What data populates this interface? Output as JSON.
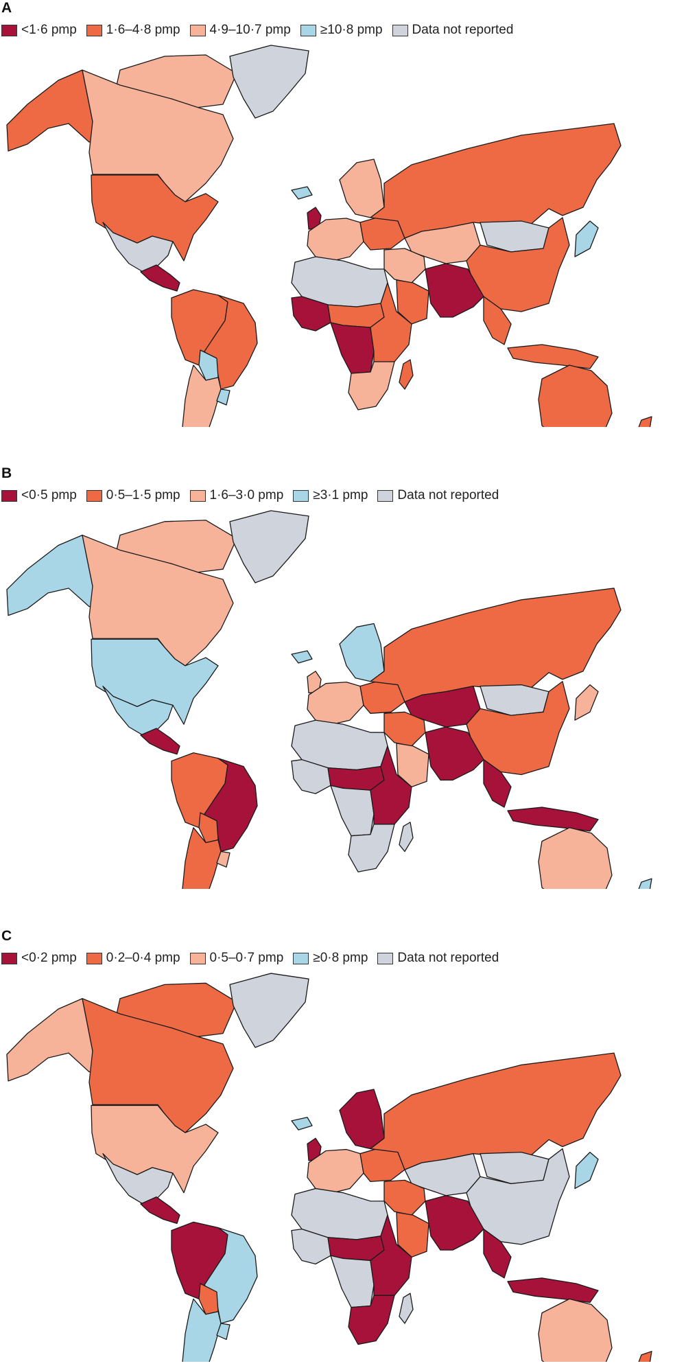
{
  "colors": {
    "dark_red": "#a6123a",
    "orange": "#ee6a45",
    "peach": "#f7b39a",
    "light_blue": "#a8d6e6",
    "grey": "#cfd3dc"
  },
  "panels": [
    {
      "letter": "A",
      "legend": [
        {
          "label": "<1·6 pmp",
          "color": "#a6123a"
        },
        {
          "label": "1·6–4·8 pmp",
          "color": "#ee6a45"
        },
        {
          "label": "4·9–10·7 pmp",
          "color": "#f7b39a"
        },
        {
          "label": "≥10·8 pmp",
          "color": "#a8d6e6"
        },
        {
          "label": "Data not reported",
          "color": "#cfd3dc"
        }
      ],
      "regions": {
        "alaska": "#ee6a45",
        "canada": "#f7b39a",
        "arctic_islands": "#f7b39a",
        "greenland": "#cfd3dc",
        "usa": "#ee6a45",
        "mexico": "#cfd3dc",
        "central_america": "#a6123a",
        "south_america_north": "#ee6a45",
        "brazil": "#ee6a45",
        "bolivia": "#a8d6e6",
        "argentina_chile": "#f7b39a",
        "uruguay": "#a8d6e6",
        "iceland": "#a8d6e6",
        "uk": "#a6123a",
        "scandinavia": "#f7b39a",
        "west_europe": "#f7b39a",
        "east_europe": "#ee6a45",
        "russia": "#ee6a45",
        "central_asia": "#f7b39a",
        "mongolia": "#cfd3dc",
        "china": "#ee6a45",
        "japan": "#a8d6e6",
        "middle_east": "#f7b39a",
        "arabia": "#ee6a45",
        "south_asia": "#a6123a",
        "southeast_asia": "#ee6a45",
        "indonesia": "#ee6a45",
        "australia": "#ee6a45",
        "new_zealand": "#ee6a45",
        "north_africa": "#cfd3dc",
        "west_africa": "#a6123a",
        "sahel": "#ee6a45",
        "central_africa": "#a6123a",
        "east_africa": "#ee6a45",
        "southern_africa": "#f7b39a",
        "madagascar": "#ee6a45"
      }
    },
    {
      "letter": "B",
      "legend": [
        {
          "label": "<0·5 pmp",
          "color": "#a6123a"
        },
        {
          "label": "0·5–1·5 pmp",
          "color": "#ee6a45"
        },
        {
          "label": "1·6–3·0 pmp",
          "color": "#f7b39a"
        },
        {
          "label": "≥3·1 pmp",
          "color": "#a8d6e6"
        },
        {
          "label": "Data not reported",
          "color": "#cfd3dc"
        }
      ],
      "regions": {
        "alaska": "#a8d6e6",
        "canada": "#f7b39a",
        "arctic_islands": "#f7b39a",
        "greenland": "#cfd3dc",
        "usa": "#a8d6e6",
        "mexico": "#a8d6e6",
        "central_america": "#a6123a",
        "south_america_north": "#ee6a45",
        "brazil": "#a6123a",
        "bolivia": "#ee6a45",
        "argentina_chile": "#ee6a45",
        "uruguay": "#f7b39a",
        "iceland": "#a8d6e6",
        "uk": "#f7b39a",
        "scandinavia": "#a8d6e6",
        "west_europe": "#f7b39a",
        "east_europe": "#ee6a45",
        "russia": "#ee6a45",
        "central_asia": "#a6123a",
        "mongolia": "#cfd3dc",
        "china": "#ee6a45",
        "japan": "#f7b39a",
        "middle_east": "#ee6a45",
        "arabia": "#f7b39a",
        "south_asia": "#a6123a",
        "southeast_asia": "#a6123a",
        "indonesia": "#a6123a",
        "australia": "#f7b39a",
        "new_zealand": "#a8d6e6",
        "north_africa": "#cfd3dc",
        "west_africa": "#cfd3dc",
        "sahel": "#a6123a",
        "central_africa": "#cfd3dc",
        "east_africa": "#a6123a",
        "southern_africa": "#cfd3dc",
        "madagascar": "#cfd3dc"
      }
    },
    {
      "letter": "C",
      "legend": [
        {
          "label": "<0·2 pmp",
          "color": "#a6123a"
        },
        {
          "label": "0·2–0·4 pmp",
          "color": "#ee6a45"
        },
        {
          "label": "0·5–0·7 pmp",
          "color": "#f7b39a"
        },
        {
          "label": "≥0·8 pmp",
          "color": "#a8d6e6"
        },
        {
          "label": "Data not reported",
          "color": "#cfd3dc"
        }
      ],
      "regions": {
        "alaska": "#f7b39a",
        "canada": "#ee6a45",
        "arctic_islands": "#ee6a45",
        "greenland": "#cfd3dc",
        "usa": "#f7b39a",
        "mexico": "#cfd3dc",
        "central_america": "#a6123a",
        "south_america_north": "#a6123a",
        "brazil": "#a8d6e6",
        "bolivia": "#ee6a45",
        "argentina_chile": "#a8d6e6",
        "uruguay": "#a8d6e6",
        "iceland": "#a8d6e6",
        "uk": "#a6123a",
        "scandinavia": "#a6123a",
        "west_europe": "#f7b39a",
        "east_europe": "#ee6a45",
        "russia": "#ee6a45",
        "central_asia": "#cfd3dc",
        "mongolia": "#cfd3dc",
        "china": "#cfd3dc",
        "japan": "#a8d6e6",
        "middle_east": "#ee6a45",
        "arabia": "#ee6a45",
        "south_asia": "#a6123a",
        "southeast_asia": "#a6123a",
        "indonesia": "#a6123a",
        "australia": "#f7b39a",
        "new_zealand": "#ee6a45",
        "north_africa": "#cfd3dc",
        "west_africa": "#cfd3dc",
        "sahel": "#a6123a",
        "central_africa": "#cfd3dc",
        "east_africa": "#a6123a",
        "southern_africa": "#a6123a",
        "madagascar": "#cfd3dc"
      }
    }
  ]
}
